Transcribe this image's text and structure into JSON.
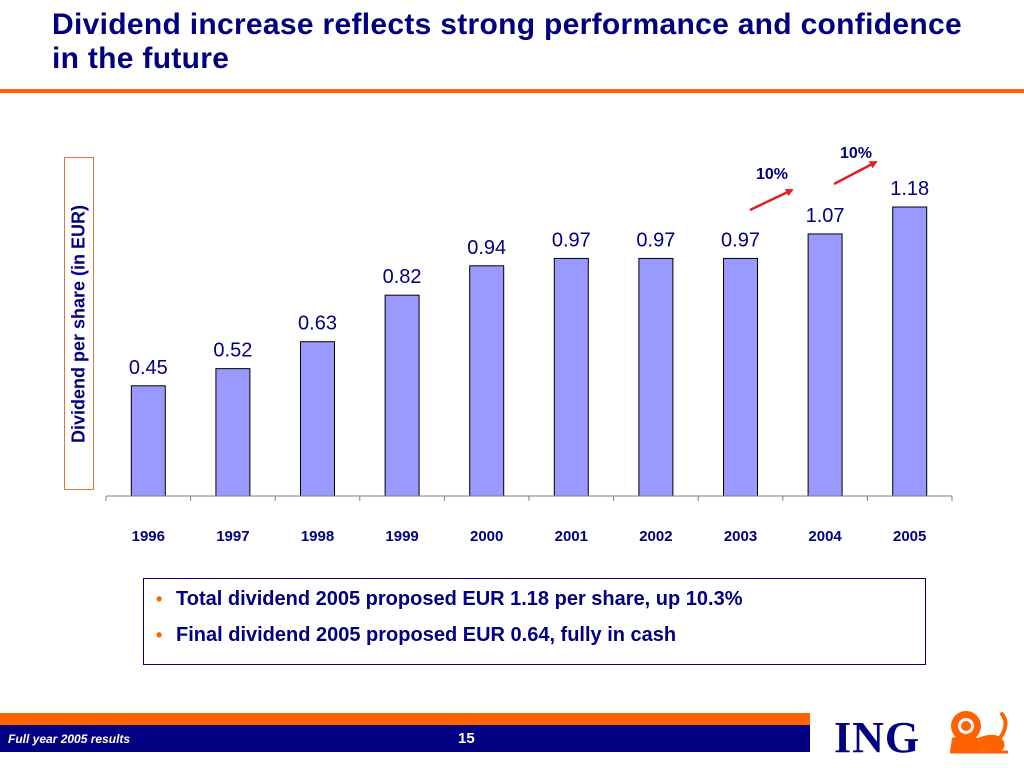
{
  "slide": {
    "title": "Dividend increase reflects strong performance and confidence in the future"
  },
  "chart_data": {
    "type": "bar",
    "title": "",
    "ylabel": "Dividend per share (in EUR)",
    "xlabel": "",
    "categories": [
      "1996",
      "1997",
      "1998",
      "1999",
      "2000",
      "2001",
      "2002",
      "2003",
      "2004",
      "2005"
    ],
    "values": [
      0.45,
      0.52,
      0.63,
      0.82,
      0.94,
      0.97,
      0.97,
      0.97,
      1.07,
      1.18
    ],
    "value_labels": [
      "0.45",
      "0.52",
      "0.63",
      "0.82",
      "0.94",
      "0.97",
      "0.97",
      "0.97",
      "1.07",
      "1.18"
    ],
    "ylim": [
      0,
      1.18
    ],
    "grid": false,
    "legend": "none",
    "bar_color": "#9999ff",
    "annotations": [
      {
        "text": "10%",
        "from": "2003",
        "to": "2004"
      },
      {
        "text": "10%",
        "from": "2004",
        "to": "2005"
      }
    ],
    "annotation_color": "#e31e24"
  },
  "bullets": [
    "Total dividend 2005 proposed EUR 1.18 per share, up 10.3%",
    "Final dividend 2005 proposed EUR 0.64, fully in cash"
  ],
  "footer": {
    "left_text": "Full year 2005 results",
    "page_number": "15"
  },
  "logo": {
    "text": "ING",
    "icon": "lion-icon"
  },
  "colors": {
    "title": "#000080",
    "accent": "#ff6200",
    "footer_bar": "#000080"
  }
}
